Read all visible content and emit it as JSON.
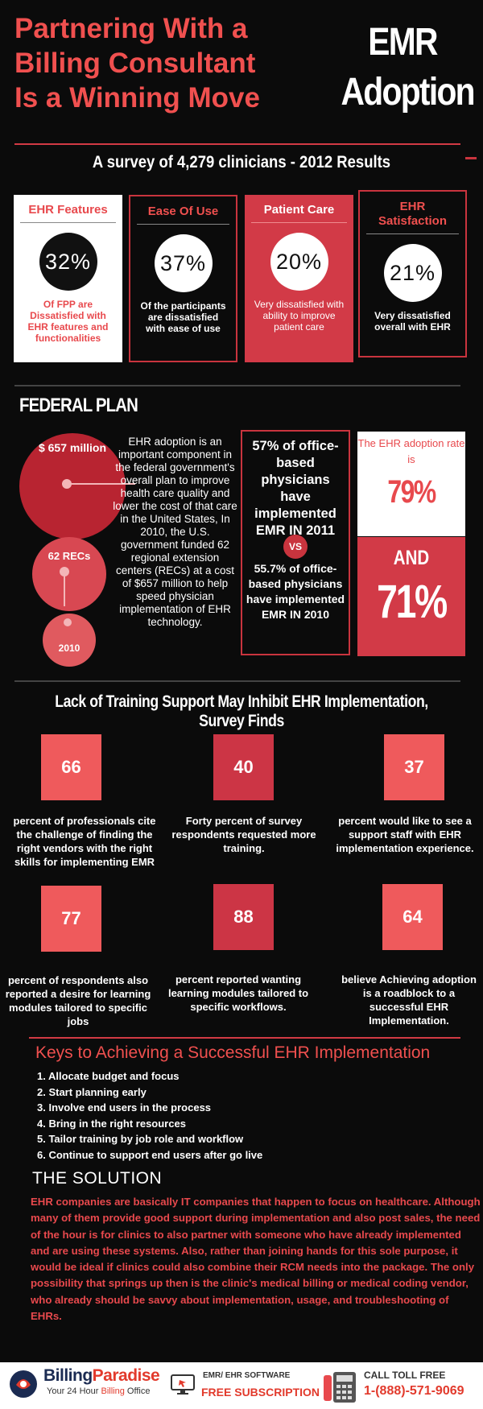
{
  "header": {
    "title_lines": [
      "Partnering With a",
      "Billing Consultant",
      "Is a Winning Move"
    ],
    "side_title_lines": [
      "EMR",
      "Adoption"
    ]
  },
  "survey": {
    "heading": "A survey of 4,279 clinicians  - 2012 Results",
    "cards": [
      {
        "title": "EHR Features",
        "value": "32%",
        "description": "Of FPP are Dissatisfied with EHR features and functionalities"
      },
      {
        "title": "Ease Of Use",
        "value": "37%",
        "description": "Of the participants are dissatisfied with ease of use"
      },
      {
        "title": "Patient Care",
        "value": "20%",
        "description": "Very dissatisfied with ability to improve patient care"
      },
      {
        "title": "EHR Satisfaction",
        "value": "21%",
        "description": "Very dissatisfied overall with EHR"
      }
    ]
  },
  "federal_plan": {
    "heading": "FEDERAL PLAN",
    "bubbles": [
      "$ 657 million",
      "62 RECs",
      "2010"
    ],
    "text": "EHR adoption is an important component in the federal government's overall plan to improve health care quality and lower the cost of that care in the United States,  In 2010, the U.S. government funded 62 regional extension centers (RECs) at a cost of $657 million to help speed physician implementation of EHR technology.",
    "compare_2011": "57% of office-based physicians have implemented EMR IN 2011",
    "vs": "VS",
    "compare_2010": "55.7% of office-based physicians have implemented EMR IN 2010",
    "rate_caption": "The EHR adoption rate is",
    "rate_1": "79%",
    "and": "AND",
    "rate_2": "71%"
  },
  "training": {
    "heading": "Lack of Training Support May Inhibit EHR Implementation, Survey Finds",
    "items": [
      {
        "value": "66",
        "caption": "percent of professionals cite the challenge of finding the right vendors with the right skills for implementing EMR"
      },
      {
        "value": "40",
        "caption": "Forty percent of survey respondents requested more training."
      },
      {
        "value": "37",
        "caption": "percent would like to see a support staff with EHR implementation experience."
      },
      {
        "value": "77",
        "caption": "percent of respondents also reported a desire for learning modules tailored to specific jobs"
      },
      {
        "value": "88",
        "caption": "percent reported wanting learning modules tailored to specific workflows."
      },
      {
        "value": "64",
        "caption": "believe Achieving adoption is a roadblock to a successful EHR Implementation."
      }
    ]
  },
  "keys": {
    "heading": "Keys to Achieving a Successful EHR Implementation",
    "items": [
      "1. Allocate budget and focus",
      "2. Start planning early",
      "3. Involve end users in the process",
      "4. Bring in the right resources",
      "5. Tailor training by job role and workflow",
      "6. Continue to support end users after go live"
    ]
  },
  "solution": {
    "heading": "THE SOLUTION",
    "text": "EHR companies are basically IT companies that happen to focus on healthcare.  Although many of them provide good support during implementation and also post sales, the need of the hour is for clinics to also partner with someone who have already implemented and are using these systems.  Also, rather than joining hands for this sole purpose, it would be ideal if clinics could also combine their RCM needs into the package.  The only possibility that springs up then is the clinic's medical billing or medical coding vendor, who already should be savvy about implementation, usage, and troubleshooting of EHRs."
  },
  "footer": {
    "brand_1": "Billing",
    "brand_2": "Paradise",
    "tagline_1": "Your 24 Hour ",
    "tagline_2": "Billing",
    "tagline_3": " Office",
    "software_label": "EMR/ EHR SOFTWARE",
    "software_cta": "FREE SUBSCRIPTION",
    "call_label": "CALL TOLL FREE",
    "call_number": "1-(888)-571-9069"
  },
  "colors": {
    "accent_red": "#f0504f",
    "deep_red": "#d23a47",
    "background": "#0b0b0b",
    "brand_navy": "#1b2b52"
  }
}
